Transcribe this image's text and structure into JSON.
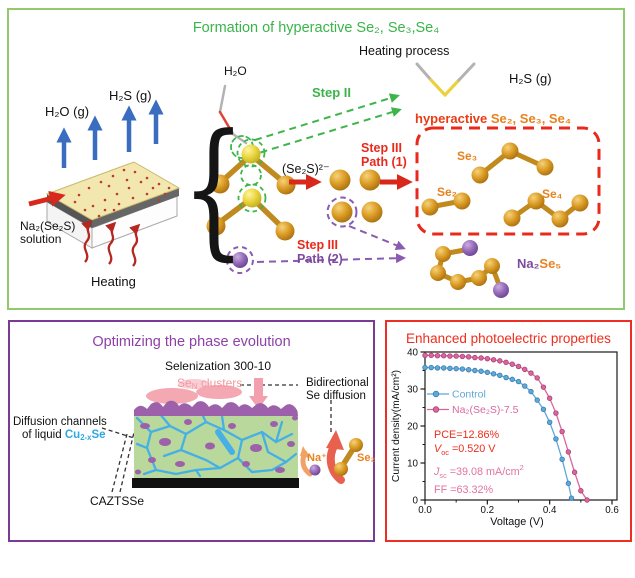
{
  "figure": {
    "panels": {
      "formation": {
        "title": "Formation of hyperactive Se₂, Se₃,Se₄",
        "border_color": "#93c96e",
        "title_color": "#3bb44a",
        "labels": {
          "h2o_gas": "H₂O (g)",
          "h2s_gas": "H₂S (g)",
          "na2se2s_line1": "Na₂(Se₂S)",
          "na2se2s_line2": "solution",
          "heating": "Heating",
          "brace": "{",
          "h2o": "H₂O",
          "heating_process": "Heating process",
          "h2s_gas_right": "H₂S (g)",
          "step2": "Step II",
          "se2s_ion": "(Se₂S)²⁻",
          "step3_path1_line1": "Step III",
          "step3_path1_line2": "Path (1)",
          "step3_path2_line1": "Step III",
          "step3_path2_line2": "Path (2)",
          "hyperactive_prefix": "hyperactive ",
          "hyperactive_species": "Se₂, Se₃, Se₄",
          "se3": "Se₃",
          "se2": "Se₂",
          "se4": "Se₄",
          "na2se5_na": "Na₂",
          "na2se5_se": "Se₅"
        }
      },
      "phase": {
        "title": "Optimizing the phase evolution",
        "border_color": "#7a3b94",
        "title_color": "#8e3fa8",
        "labels": {
          "selenization": "Selenization 300-10",
          "sen_pre": "Se",
          "sen_sub": "N",
          "sen_post": " clusters",
          "bidirectional_line1": "Bidirectional",
          "bidirectional_line2": "Se diffusion",
          "diffusion_line1": "Diffusion channels",
          "diffusion_line2_pre": "of liquid ",
          "cu_pre": "Cu",
          "cu_sub": "2-x",
          "cu_post": "Se",
          "caztsse": "CAZTSSe",
          "na_ion": "Na⁺",
          "se2": "Se₂"
        }
      },
      "photoelectric": {
        "title": "Enhanced photoelectric properties",
        "border_color": "#ee2d24",
        "title_color": "#ee2d1c"
      }
    }
  },
  "chart_data": {
    "type": "line",
    "title": "",
    "xlabel": "Voltage (V)",
    "ylabel": "Current density(mA/cm²)",
    "xlim": [
      0.0,
      0.6
    ],
    "ylim": [
      0,
      40
    ],
    "xticks": [
      0.0,
      0.2,
      0.4,
      0.6
    ],
    "xtick_labels": [
      "0.0",
      "0.2",
      "0.4",
      "0.6"
    ],
    "yticks": [
      0,
      10,
      20,
      30,
      40
    ],
    "ytick_labels": [
      "0",
      "10",
      "20",
      "30",
      "40"
    ],
    "x_minor_step": 0.1,
    "y_minor_step": 5,
    "grid": false,
    "legend_position": "upper-left",
    "series": [
      {
        "name": "Control",
        "color": "#5fa8d8",
        "marker_edge": "#3a7db0",
        "x": [
          0.0,
          0.02,
          0.04,
          0.06,
          0.08,
          0.1,
          0.12,
          0.14,
          0.16,
          0.18,
          0.2,
          0.22,
          0.24,
          0.26,
          0.28,
          0.3,
          0.32,
          0.34,
          0.36,
          0.38,
          0.4,
          0.42,
          0.44,
          0.46,
          0.47
        ],
        "y": [
          35.8,
          35.8,
          35.7,
          35.7,
          35.6,
          35.5,
          35.4,
          35.2,
          35.0,
          34.8,
          34.5,
          34.1,
          33.7,
          33.1,
          32.6,
          32.0,
          30.8,
          29.3,
          27.0,
          24.5,
          21.0,
          16.5,
          11.0,
          4.5,
          0.5
        ]
      },
      {
        "name": "Na₂(Se₂S)-7.5",
        "color": "#d9679e",
        "marker_edge": "#ad3f72",
        "x": [
          0.0,
          0.02,
          0.04,
          0.06,
          0.08,
          0.1,
          0.12,
          0.14,
          0.16,
          0.18,
          0.2,
          0.22,
          0.24,
          0.26,
          0.28,
          0.3,
          0.32,
          0.34,
          0.36,
          0.38,
          0.4,
          0.42,
          0.44,
          0.46,
          0.48,
          0.5,
          0.52
        ],
        "y": [
          39.1,
          39.1,
          39.0,
          39.0,
          38.9,
          38.9,
          38.8,
          38.7,
          38.5,
          38.4,
          38.2,
          37.9,
          37.6,
          37.2,
          36.7,
          36.1,
          35.3,
          34.3,
          33.0,
          30.5,
          27.5,
          23.5,
          18.5,
          13.0,
          7.5,
          2.5,
          0.0
        ]
      }
    ],
    "annotations": [
      {
        "color": "#ee2d1c",
        "parts": [
          {
            "t": "PCE=12.86%"
          }
        ]
      },
      {
        "color": "#ee2d1c",
        "parts": [
          {
            "t": "V",
            "i": true
          },
          {
            "t": "oc",
            "sub": true
          },
          {
            "t": " =0.520 V"
          }
        ]
      },
      {
        "color": "#e2739f",
        "parts": [
          {
            "t": "J",
            "i": true
          },
          {
            "t": "sc",
            "sub": true
          },
          {
            "t": " =39.08 mA/cm"
          },
          {
            "t": "2",
            "sup": true
          }
        ]
      },
      {
        "color": "#e2739f",
        "parts": [
          {
            "t": "FF =63.32%"
          }
        ]
      }
    ]
  }
}
